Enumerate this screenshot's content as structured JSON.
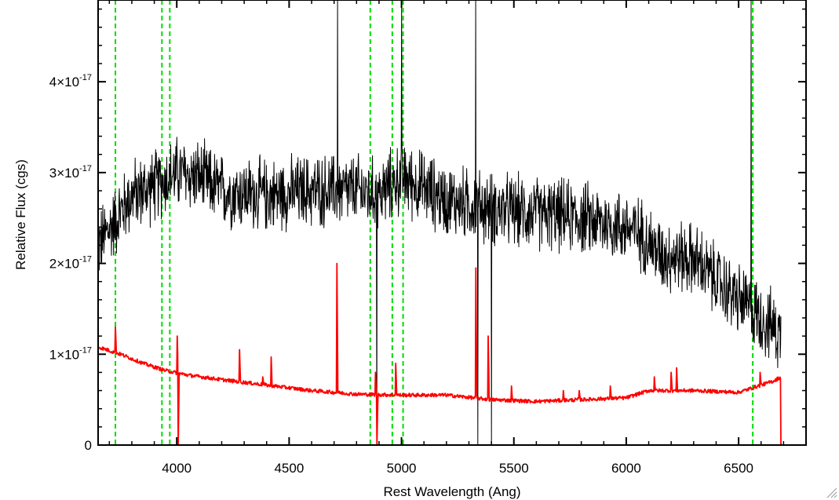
{
  "chart_data": {
    "type": "line",
    "title": "",
    "xlabel": "Rest Wavelength (Ang)",
    "ylabel": "Relative Flux (cgs)",
    "xlim": [
      3650,
      6800
    ],
    "ylim": [
      0,
      4.9e-17
    ],
    "x_ticks": [
      {
        "value": 4000,
        "label": "4000"
      },
      {
        "value": 4500,
        "label": "4500"
      },
      {
        "value": 5000,
        "label": "5000"
      },
      {
        "value": 5500,
        "label": "5500"
      },
      {
        "value": 6000,
        "label": "6000"
      },
      {
        "value": 6500,
        "label": "6500"
      }
    ],
    "y_ticks": [
      {
        "value": 0,
        "mantissa": "0",
        "exponent": ""
      },
      {
        "value": 1e-17,
        "mantissa": "1×10",
        "exponent": "-17"
      },
      {
        "value": 2e-17,
        "mantissa": "2×10",
        "exponent": "-17"
      },
      {
        "value": 3e-17,
        "mantissa": "3×10",
        "exponent": "-17"
      },
      {
        "value": 4e-17,
        "mantissa": "4×10",
        "exponent": "-17"
      }
    ],
    "grid": false,
    "series": [
      {
        "color": "#000000",
        "style": "noisy-spectrum",
        "continuum": {
          "x": [
            3650,
            3720,
            3800,
            3900,
            4000,
            4100,
            4200,
            4400,
            4600,
            4800,
            4900,
            5000,
            5200,
            5400,
            5600,
            5800,
            6000,
            6080,
            6150,
            6300,
            6450,
            6550,
            6650,
            6690
          ],
          "y": [
            2.2e-17,
            2.45e-17,
            2.75e-17,
            2.85e-17,
            3e-17,
            2.95e-17,
            2.8e-17,
            2.75e-17,
            2.8e-17,
            2.8e-17,
            2.75e-17,
            2.95e-17,
            2.7e-17,
            2.6e-17,
            2.55e-17,
            2.5e-17,
            2.4e-17,
            2.3e-17,
            2.1e-17,
            2.05e-17,
            1.7e-17,
            1.5e-17,
            1.3e-17,
            1.2e-17
          ]
        },
        "noise_amplitude": 4e-18,
        "spikes": [
          {
            "x": 4715,
            "y": 4.9e-17
          },
          {
            "x": 4890,
            "y": 0
          },
          {
            "x": 5000,
            "y": 4.9e-17
          },
          {
            "x": 5330,
            "y": 4.9e-17
          },
          {
            "x": 5340,
            "y": 0
          },
          {
            "x": 5400,
            "y": 0
          },
          {
            "x": 6555,
            "y": 4.9e-17
          }
        ]
      },
      {
        "color": "#ff0000",
        "style": "spectrum",
        "continuum": {
          "x": [
            3650,
            3750,
            3850,
            3950,
            4050,
            4200,
            4400,
            4600,
            4800,
            5000,
            5200,
            5400,
            5600,
            5800,
            6000,
            6100,
            6300,
            6500,
            6650,
            6690
          ],
          "y": [
            1.08e-17,
            1e-17,
            9e-18,
            8.2e-18,
            7.7e-18,
            7.2e-18,
            6.6e-18,
            6e-18,
            5.6e-18,
            5.5e-18,
            5.5e-18,
            5e-18,
            4.8e-18,
            5e-18,
            5.2e-18,
            6e-18,
            6e-18,
            5.8e-18,
            7e-18,
            7.5e-18
          ]
        },
        "noise_amplitude": 2e-19,
        "lines": [
          {
            "x": 3727,
            "peak": 1.3e-17
          },
          {
            "x": 4002,
            "peak": 1.2e-17
          },
          {
            "x": 4006,
            "peak": 0
          },
          {
            "x": 4280,
            "peak": 1.05e-17
          },
          {
            "x": 4383,
            "peak": 7.5e-18
          },
          {
            "x": 4420,
            "peak": 9.7e-18
          },
          {
            "x": 4713,
            "peak": 2e-17
          },
          {
            "x": 4885,
            "peak": 8e-18
          },
          {
            "x": 4890,
            "peak": 0
          },
          {
            "x": 4975,
            "peak": 9e-18
          },
          {
            "x": 5330,
            "peak": 1.95e-17
          },
          {
            "x": 5385,
            "peak": 1.2e-17
          },
          {
            "x": 5490,
            "peak": 6.5e-18
          },
          {
            "x": 5720,
            "peak": 6e-18
          },
          {
            "x": 5790,
            "peak": 6e-18
          },
          {
            "x": 5930,
            "peak": 6.5e-18
          },
          {
            "x": 6125,
            "peak": 7.5e-18
          },
          {
            "x": 6200,
            "peak": 8e-18
          },
          {
            "x": 6225,
            "peak": 8.5e-18
          },
          {
            "x": 6595,
            "peak": 8e-18
          },
          {
            "x": 6695,
            "peak": 0
          }
        ]
      }
    ],
    "vertical_lines": [
      {
        "x": 3727,
        "color": "#00dd00",
        "style": "dashed"
      },
      {
        "x": 3934,
        "color": "#00dd00",
        "style": "dashed"
      },
      {
        "x": 3969,
        "color": "#00dd00",
        "style": "dashed"
      },
      {
        "x": 4861,
        "color": "#00dd00",
        "style": "dashed"
      },
      {
        "x": 4959,
        "color": "#00dd00",
        "style": "dashed"
      },
      {
        "x": 5007,
        "color": "#00dd00",
        "style": "dashed"
      },
      {
        "x": 6563,
        "color": "#00dd00",
        "style": "dashed"
      }
    ]
  }
}
